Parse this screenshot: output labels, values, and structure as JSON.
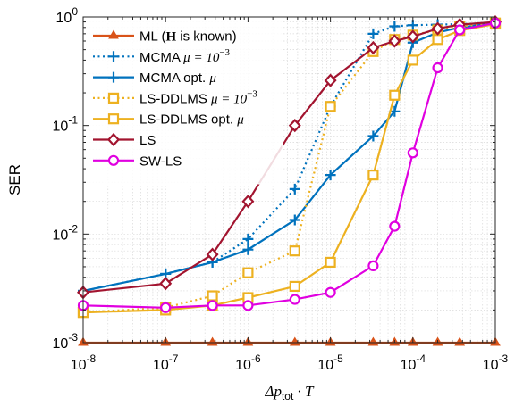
{
  "chart_data": {
    "type": "line",
    "xlabel": "Δp",
    "xlabel_sub": "tot",
    "xlabel_rest": " · T",
    "ylabel": "SER",
    "x_scale": "log",
    "y_scale": "log",
    "xlim": [
      1e-08,
      0.001
    ],
    "ylim": [
      0.001,
      1
    ],
    "grid": true,
    "legend_position": "top-left",
    "x_ticks": [
      {
        "value": 1e-08,
        "base": "10",
        "exp": "-8"
      },
      {
        "value": 1e-07,
        "base": "10",
        "exp": "-7"
      },
      {
        "value": 1e-06,
        "base": "10",
        "exp": "-6"
      },
      {
        "value": 1e-05,
        "base": "10",
        "exp": "-5"
      },
      {
        "value": 0.0001,
        "base": "10",
        "exp": "-4"
      },
      {
        "value": 0.001,
        "base": "10",
        "exp": "-3"
      }
    ],
    "y_ticks": [
      {
        "value": 1,
        "base": "10",
        "exp": "0"
      },
      {
        "value": 0.1,
        "base": "10",
        "exp": "-1"
      },
      {
        "value": 0.01,
        "base": "10",
        "exp": "-2"
      },
      {
        "value": 0.001,
        "base": "10",
        "exp": "-3"
      }
    ],
    "series": [
      {
        "name": "ML (H is known)",
        "name_prefix": "ML (",
        "name_bold": "H",
        "name_suffix": " is known)",
        "color": "#D95319",
        "marker": "triangle",
        "dash": "solid",
        "x": [
          1e-08,
          1e-07,
          3.7e-07,
          1e-06,
          3.7e-06,
          1e-05,
          3.3e-05,
          6e-05,
          0.0001,
          0.0002,
          0.00037,
          0.001
        ],
        "y": [
          0.001,
          0.001,
          0.001,
          0.001,
          0.001,
          0.001,
          0.001,
          0.001,
          0.001,
          0.001,
          0.001,
          0.001
        ]
      },
      {
        "name": "MCMA μ = 10^-3",
        "name_prefix": "MCMA ",
        "name_math": "μ = 10",
        "name_exp": "−3",
        "color": "#0072BD",
        "marker": "plus",
        "dash": "dotted",
        "x": [
          1e-08,
          1e-07,
          3.7e-07,
          1e-06,
          3.7e-06,
          1e-05,
          3.3e-05,
          6e-05,
          0.0001,
          0.0002,
          0.00037,
          0.001
        ],
        "y": [
          0.003,
          0.0043,
          0.0055,
          0.009,
          0.026,
          0.15,
          0.7,
          0.82,
          0.84,
          0.85,
          0.86,
          0.88
        ]
      },
      {
        "name": "MCMA opt. μ",
        "name_prefix": "MCMA opt. ",
        "name_math": "μ",
        "color": "#0072BD",
        "marker": "plus",
        "dash": "solid",
        "x": [
          1e-08,
          1e-07,
          3.7e-07,
          1e-06,
          3.7e-06,
          1e-05,
          3.3e-05,
          6e-05,
          0.0001,
          0.0002,
          0.00037,
          0.001
        ],
        "y": [
          0.003,
          0.0043,
          0.0055,
          0.0072,
          0.0135,
          0.035,
          0.08,
          0.135,
          0.58,
          0.72,
          0.8,
          0.88
        ]
      },
      {
        "name": "LS-DDLMS μ = 10^-3",
        "name_prefix": "LS-DDLMS ",
        "name_math": "μ = 10",
        "name_exp": "−3",
        "color": "#EDB120",
        "marker": "square",
        "dash": "dotted",
        "x": [
          1e-08,
          1e-07,
          3.7e-07,
          1e-06,
          3.7e-06,
          1e-05,
          3.3e-05,
          6e-05,
          0.0001,
          0.0002,
          0.00037,
          0.001
        ],
        "y": [
          0.0019,
          0.0021,
          0.0027,
          0.0044,
          0.007,
          0.15,
          0.48,
          0.62,
          0.68,
          0.76,
          0.82,
          0.88
        ]
      },
      {
        "name": "LS-DDLMS opt. μ",
        "name_prefix": "LS-DDLMS opt. ",
        "name_math": "μ",
        "color": "#EDB120",
        "marker": "square",
        "dash": "solid",
        "x": [
          1e-08,
          1e-07,
          3.7e-07,
          1e-06,
          3.7e-06,
          1e-05,
          3.3e-05,
          6e-05,
          0.0001,
          0.0002,
          0.00037,
          0.001
        ],
        "y": [
          0.0019,
          0.002,
          0.0022,
          0.0026,
          0.0033,
          0.0055,
          0.035,
          0.19,
          0.4,
          0.62,
          0.75,
          0.86
        ]
      },
      {
        "name": "LS",
        "name_prefix": "LS",
        "color": "#A2142F",
        "marker": "diamond",
        "dash": "solid",
        "x": [
          1e-08,
          1e-07,
          3.7e-07,
          1e-06,
          3.7e-06,
          1e-05,
          3.3e-05,
          6e-05,
          0.0001,
          0.0002,
          0.00037,
          0.001
        ],
        "y": [
          0.0029,
          0.0035,
          0.0065,
          0.02,
          0.1,
          0.26,
          0.52,
          0.6,
          0.66,
          0.78,
          0.85,
          0.9
        ]
      },
      {
        "name": "SW-LS",
        "name_prefix": "SW-LS",
        "color": "#E000E0",
        "marker": "circle",
        "dash": "solid",
        "x": [
          1e-08,
          1e-07,
          3.7e-07,
          1e-06,
          3.7e-06,
          1e-05,
          3.3e-05,
          6e-05,
          0.0001,
          0.0002,
          0.00037,
          0.001
        ],
        "y": [
          0.0022,
          0.0021,
          0.0022,
          0.0022,
          0.0025,
          0.0029,
          0.0051,
          0.0118,
          0.056,
          0.34,
          0.76,
          0.88
        ]
      }
    ]
  }
}
